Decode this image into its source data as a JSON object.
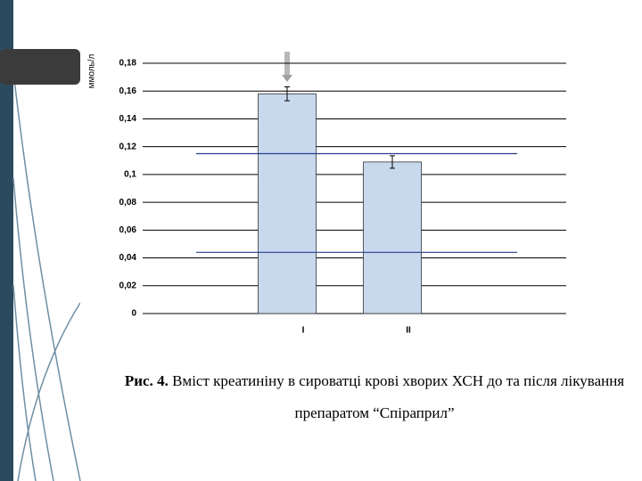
{
  "chart_data": {
    "type": "bar",
    "y_label": "ммоль/л",
    "categories": [
      "I",
      "II"
    ],
    "series": [
      {
        "color": "#c8d9ee",
        "values": [
          0.158,
          0.109
        ],
        "errors": [
          0.005,
          0.0045
        ]
      }
    ],
    "reference_lines": [
      0.115,
      0.044
    ],
    "reference_color": "#2a3c8e",
    "ylim": [
      0,
      0.18
    ],
    "yticks": [
      0,
      {
        "value": 0.02,
        "label": "0,02"
      },
      {
        "value": 0.04,
        "label": "0,04"
      },
      {
        "value": 0.06,
        "label": "0,06"
      },
      {
        "value": 0.08,
        "label": "0,08"
      },
      {
        "value": 0.1,
        "label": "0,1"
      },
      {
        "value": 0.12,
        "label": "0,12"
      },
      {
        "value": 0.14,
        "label": "0,14"
      },
      {
        "value": 0.16,
        "label": "0,16"
      },
      {
        "value": 0.18,
        "label": "0,18"
      }
    ],
    "grid": true
  },
  "caption": {
    "label": "Рис. 4.",
    "text": "Вміст креатиніну в сироватці крові хворих ХСН до та після лікування препаратом “Спіраприл”"
  }
}
